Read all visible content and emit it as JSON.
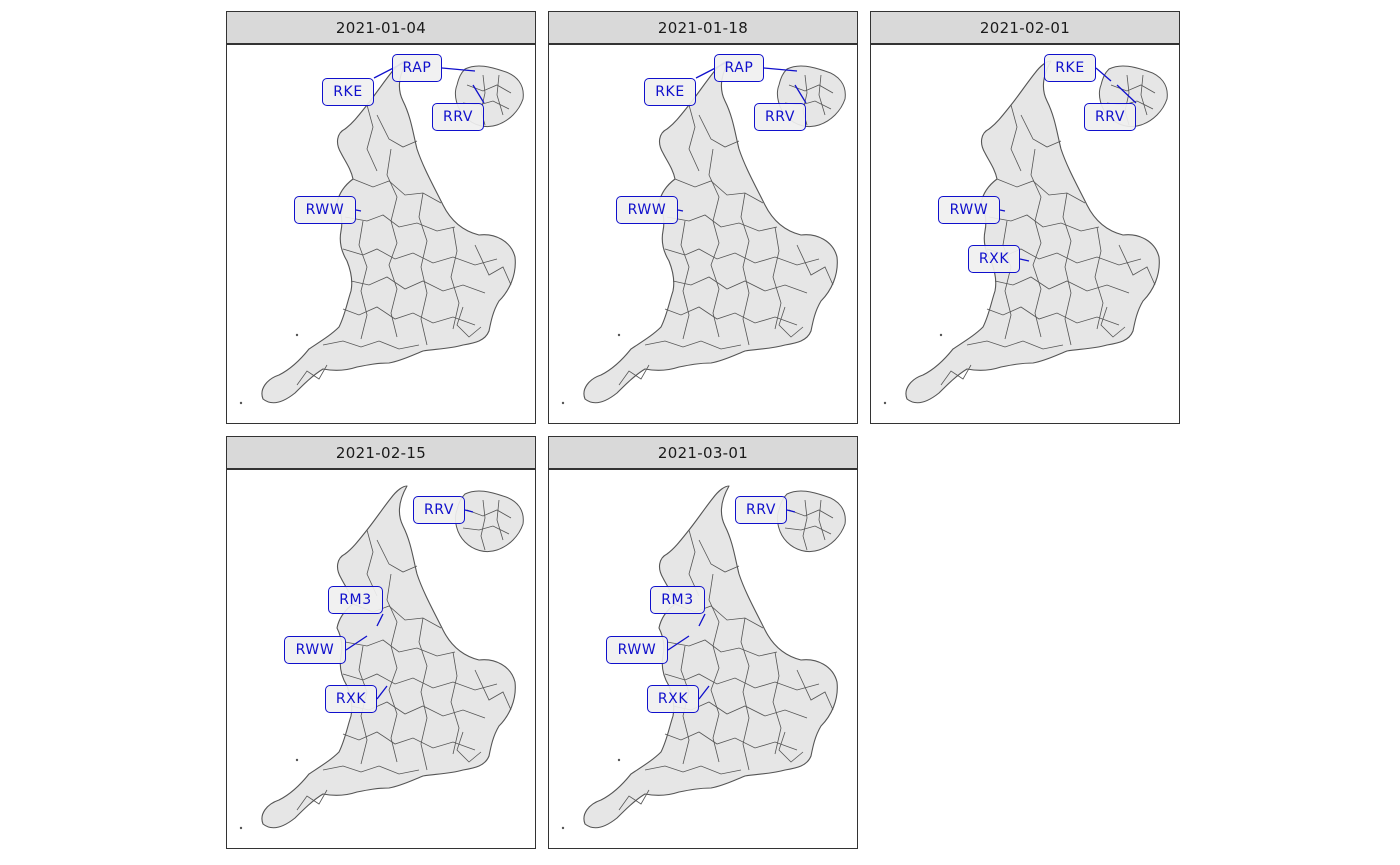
{
  "facets": [
    {
      "title": "2021-01-04",
      "labels": [
        "RAP",
        "RKE",
        "RRV",
        "RWW"
      ]
    },
    {
      "title": "2021-01-18",
      "labels": [
        "RAP",
        "RKE",
        "RRV",
        "RWW"
      ]
    },
    {
      "title": "2021-02-01",
      "labels": [
        "RKE",
        "RRV",
        "RWW",
        "RXK"
      ]
    },
    {
      "title": "2021-02-15",
      "labels": [
        "RRV",
        "RM3",
        "RWW",
        "RXK"
      ]
    },
    {
      "title": "2021-03-01",
      "labels": [
        "RRV",
        "RM3",
        "RWW",
        "RXK"
      ]
    }
  ],
  "colors": {
    "label": "#1010cc",
    "land_fill": "#e6e6e6",
    "boundary": "#555555",
    "strip_bg": "#d9d9d9"
  }
}
